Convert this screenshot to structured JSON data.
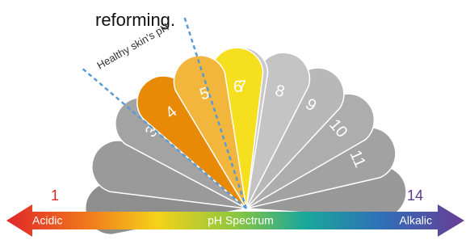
{
  "caption": "reforming.",
  "healthy_range_label": "Healthy skin's pH",
  "petal_labels": [
    "3",
    "4",
    "5",
    "6",
    "7",
    "8",
    "9",
    "10",
    "11"
  ],
  "scale": {
    "low": "1",
    "high": "14",
    "left_label": "Acidic",
    "center_label": "pH Spectrum",
    "right_label": "Alkalic"
  }
}
